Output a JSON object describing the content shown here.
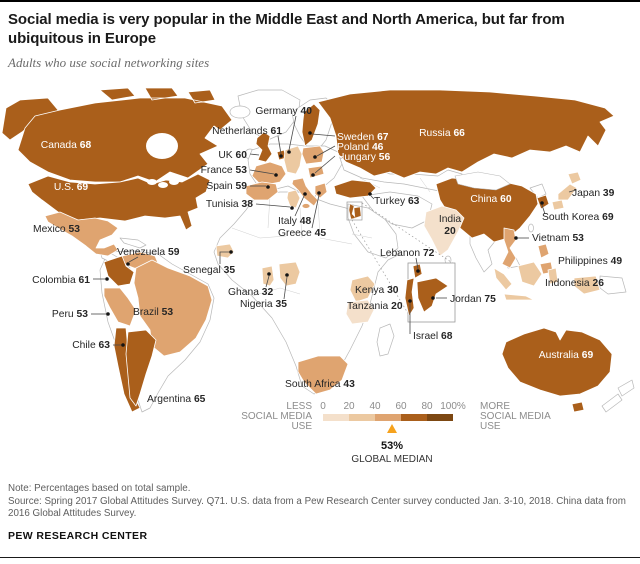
{
  "header": {
    "title": "Social media is very popular in the Middle East and North America, but far from ubiquitous in Europe",
    "subtitle": "Adults who use social networking sites"
  },
  "chart_data": {
    "type": "choropleth_map",
    "title": "Social media is very popular in the Middle East and North America, but far from ubiquitous in Europe",
    "subtitle": "Adults who use social networking sites",
    "value_unit": "% of adults who use social networking sites",
    "legend": {
      "less_label_lines": [
        "LESS",
        "SOCIAL MEDIA",
        "USE"
      ],
      "more_label_lines": [
        "MORE",
        "SOCIAL MEDIA",
        "USE"
      ],
      "ticks": [
        "0",
        "20",
        "40",
        "60",
        "80",
        "100%"
      ],
      "band_colors": [
        "#f4e0cb",
        "#ecc9a1",
        "#dfa470",
        "#aa5f1b",
        "#7c4712"
      ],
      "global_median": {
        "value_label": "53%",
        "caption": "GLOBAL MEDIAN",
        "marker_color": "#f6a21d"
      }
    },
    "countries": [
      {
        "id": "canada",
        "name": "Canada",
        "value": 68,
        "band": 3
      },
      {
        "id": "us",
        "name": "U.S.",
        "value": 69,
        "band": 3
      },
      {
        "id": "mexico",
        "name": "Mexico",
        "value": 53,
        "band": 2
      },
      {
        "id": "venezuela",
        "name": "Venezuela",
        "value": 59,
        "band": 2
      },
      {
        "id": "colombia",
        "name": "Colombia",
        "value": 61,
        "band": 3
      },
      {
        "id": "peru",
        "name": "Peru",
        "value": 53,
        "band": 2
      },
      {
        "id": "brazil",
        "name": "Brazil",
        "value": 53,
        "band": 2
      },
      {
        "id": "chile",
        "name": "Chile",
        "value": 63,
        "band": 3
      },
      {
        "id": "argentina",
        "name": "Argentina",
        "value": 65,
        "band": 3
      },
      {
        "id": "uk",
        "name": "UK",
        "value": 60,
        "band": 3
      },
      {
        "id": "netherlands",
        "name": "Netherlands",
        "value": 61,
        "band": 3
      },
      {
        "id": "germany",
        "name": "Germany",
        "value": 40,
        "band": 1
      },
      {
        "id": "france",
        "name": "France",
        "value": 53,
        "band": 2
      },
      {
        "id": "spain",
        "name": "Spain",
        "value": 59,
        "band": 2
      },
      {
        "id": "sweden",
        "name": "Sweden",
        "value": 67,
        "band": 3
      },
      {
        "id": "poland",
        "name": "Poland",
        "value": 46,
        "band": 2
      },
      {
        "id": "hungary",
        "name": "Hungary",
        "value": 56,
        "band": 2
      },
      {
        "id": "italy",
        "name": "Italy",
        "value": 48,
        "band": 2
      },
      {
        "id": "greece",
        "name": "Greece",
        "value": 45,
        "band": 2
      },
      {
        "id": "tunisia",
        "name": "Tunisia",
        "value": 38,
        "band": 1
      },
      {
        "id": "senegal",
        "name": "Senegal",
        "value": 35,
        "band": 1
      },
      {
        "id": "ghana",
        "name": "Ghana",
        "value": 32,
        "band": 1
      },
      {
        "id": "nigeria",
        "name": "Nigeria",
        "value": 35,
        "band": 1
      },
      {
        "id": "kenya",
        "name": "Kenya",
        "value": 30,
        "band": 1
      },
      {
        "id": "tanzania",
        "name": "Tanzania",
        "value": 20,
        "band": 0
      },
      {
        "id": "southafrica",
        "name": "South Africa",
        "value": 43,
        "band": 2
      },
      {
        "id": "russia",
        "name": "Russia",
        "value": 66,
        "band": 3
      },
      {
        "id": "turkey",
        "name": "Turkey",
        "value": 63,
        "band": 3
      },
      {
        "id": "lebanon",
        "name": "Lebanon",
        "value": 72,
        "band": 3
      },
      {
        "id": "israel",
        "name": "Israel",
        "value": 68,
        "band": 3
      },
      {
        "id": "jordan",
        "name": "Jordan",
        "value": 75,
        "band": 3
      },
      {
        "id": "india",
        "name": "India",
        "value": 20,
        "band": 0
      },
      {
        "id": "china",
        "name": "China",
        "value": 60,
        "band": 3
      },
      {
        "id": "japan",
        "name": "Japan",
        "value": 39,
        "band": 1
      },
      {
        "id": "southkorea",
        "name": "South Korea",
        "value": 69,
        "band": 3
      },
      {
        "id": "vietnam",
        "name": "Vietnam",
        "value": 53,
        "band": 2
      },
      {
        "id": "philippines",
        "name": "Philippines",
        "value": 49,
        "band": 2
      },
      {
        "id": "indonesia",
        "name": "Indonesia",
        "value": 26,
        "band": 1
      },
      {
        "id": "australia",
        "name": "Australia",
        "value": 69,
        "band": 3
      }
    ]
  },
  "footer": {
    "note": "Note: Percentages based on total sample.",
    "source": "Source: Spring 2017 Global Attitudes Survey. Q71. U.S. data from a Pew Research Center survey conducted Jan. 3-10, 2018. China data from 2016 Global Attitudes Survey.",
    "brand": "PEW RESEARCH CENTER"
  }
}
